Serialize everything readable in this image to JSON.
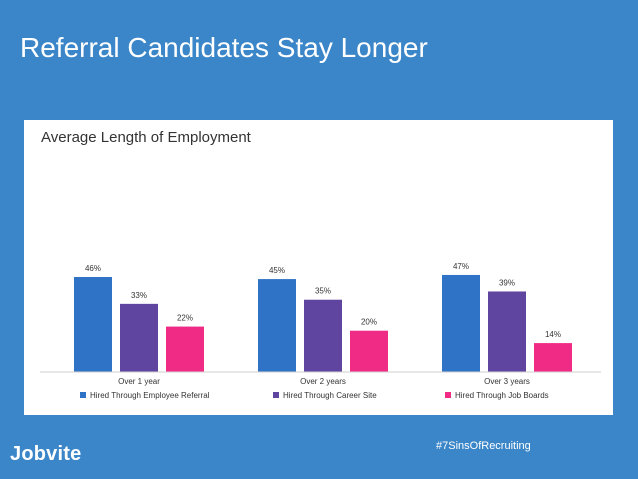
{
  "slide": {
    "title": "Referral Candidates Stay Longer",
    "logo": "Jobvite",
    "hashtag": "#7SinsOfRecruiting",
    "background_color": "#3b86c9"
  },
  "chart_data": {
    "type": "bar",
    "title": "Average Length of Employment",
    "xlabel": "",
    "ylabel": "",
    "ylim": [
      0,
      50
    ],
    "grid": false,
    "legend_position": "bottom",
    "categories": [
      "Over 1 year",
      "Over 2 years",
      "Over 3 years"
    ],
    "series": [
      {
        "name": "Hired Through Employee Referral",
        "color": "#2f73c6",
        "values": [
          46,
          45,
          47
        ]
      },
      {
        "name": "Hired Through Career Site",
        "color": "#5f44a0",
        "values": [
          33,
          35,
          39
        ]
      },
      {
        "name": "Hired Through Job Boards",
        "color": "#f02b86",
        "values": [
          22,
          20,
          14
        ]
      }
    ],
    "value_suffix": "%"
  }
}
